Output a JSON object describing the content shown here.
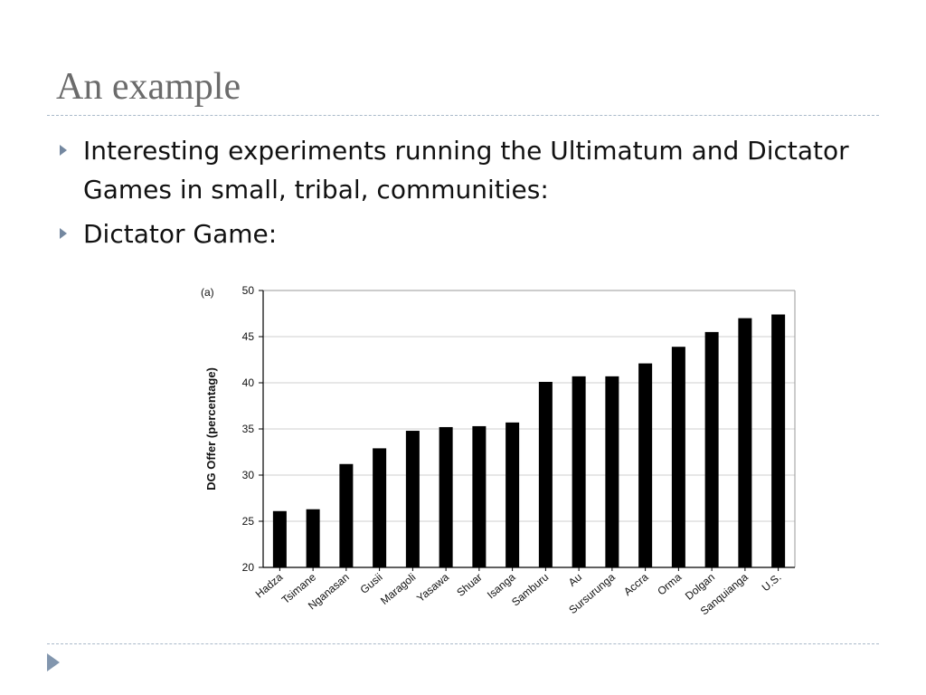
{
  "slide": {
    "title": "An example",
    "bullets": [
      "Interesting experiments running the Ultimatum and Dictator Games in small, tribal, communities:",
      "Dictator Game:"
    ]
  },
  "colors": {
    "title": "#6b6b6b",
    "bullet_marker": "#7488a0",
    "rule": "#a9b9c9",
    "bar": "#000000",
    "grid": "#cfcfcf"
  },
  "icons": {
    "bullet": "triangle-right-icon",
    "nav": "triangle-right-icon"
  },
  "chart_data": {
    "type": "bar",
    "panel_label": "(a)",
    "ylabel": "DG Offer (percentage)",
    "xlabel": "",
    "ylim": [
      20,
      50
    ],
    "yticks": [
      20,
      25,
      30,
      35,
      40,
      45,
      50
    ],
    "grid": true,
    "categories": [
      "Hadza",
      "Tsimane",
      "Nganasan",
      "Gusii",
      "Maragoli",
      "Yasawa",
      "Shuar",
      "Isanga",
      "Samburu",
      "Au",
      "Sursurunga",
      "Accra",
      "Orma",
      "Dolgan",
      "Sanquianga",
      "U.S."
    ],
    "values": [
      26.1,
      26.3,
      31.2,
      32.9,
      34.8,
      35.2,
      35.3,
      35.7,
      40.1,
      40.7,
      40.7,
      42.1,
      43.9,
      45.5,
      47.0,
      47.4
    ]
  }
}
